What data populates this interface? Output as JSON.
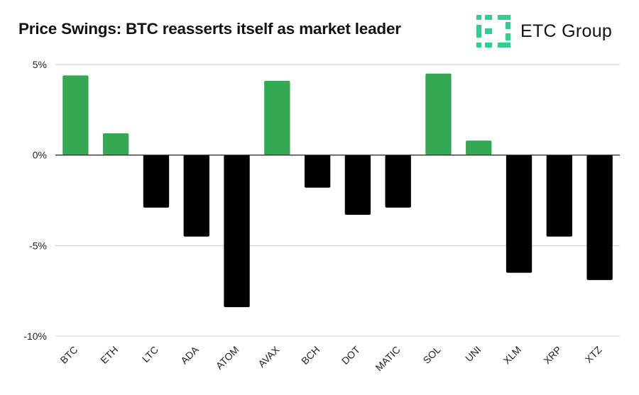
{
  "title": "Price Swings: BTC reasserts itself as market leader",
  "logo": {
    "icon": "etc-group-logo-icon",
    "text": "ETC Group",
    "color": "#2ed08f"
  },
  "colors": {
    "positive": "#34a853",
    "negative": "#000000",
    "grid": "#cccccc",
    "zero_line": "#333333"
  },
  "chart_data": {
    "type": "bar",
    "title": "Price Swings: BTC reasserts itself as market leader",
    "xlabel": "",
    "ylabel": "",
    "ylim": [
      -10,
      5
    ],
    "y_ticks": [
      5,
      0,
      -5,
      -10
    ],
    "y_tick_labels": [
      "5%",
      "0%",
      "-5%",
      "-10%"
    ],
    "grid": true,
    "legend": "none",
    "categories": [
      "BTC",
      "ETH",
      "LTC",
      "ADA",
      "ATOM",
      "AVAX",
      "BCH",
      "DOT",
      "MATIC",
      "SOL",
      "UNI",
      "XLM",
      "XRP",
      "XTZ"
    ],
    "values": [
      4.4,
      1.2,
      -2.9,
      -4.5,
      -8.4,
      4.1,
      -1.8,
      -3.3,
      -2.9,
      4.5,
      0.8,
      -6.5,
      -4.5,
      -6.9
    ]
  }
}
